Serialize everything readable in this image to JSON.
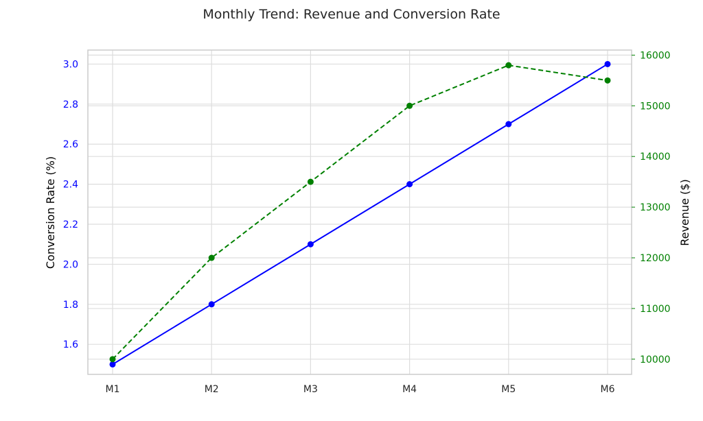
{
  "chart_data": {
    "type": "line",
    "title": "Monthly Trend: Revenue and Conversion Rate",
    "categories": [
      "M1",
      "M2",
      "M3",
      "M4",
      "M5",
      "M6"
    ],
    "xlabel": "",
    "y_left": {
      "label": "Conversion Rate (%)",
      "color": "#0000ff",
      "ylim": [
        1.45,
        3.07
      ],
      "ticks": [
        1.6,
        1.8,
        2.0,
        2.2,
        2.4,
        2.6,
        2.8,
        3.0
      ],
      "tick_labels": [
        "1.6",
        "1.8",
        "2.0",
        "2.2",
        "2.4",
        "2.6",
        "2.8",
        "3.0"
      ]
    },
    "y_right": {
      "label": "Revenue ($)",
      "color": "#008000",
      "ylim": [
        9700,
        16100
      ],
      "ticks": [
        10000,
        11000,
        12000,
        13000,
        14000,
        15000,
        16000
      ],
      "tick_labels": [
        "10000",
        "11000",
        "12000",
        "13000",
        "14000",
        "15000",
        "16000"
      ]
    },
    "series": [
      {
        "axis": "left",
        "color": "#0000ff",
        "line_style": "solid",
        "marker": "circle",
        "values": [
          1.5,
          1.8,
          2.1,
          2.4,
          2.7,
          3.0
        ]
      },
      {
        "axis": "right",
        "color": "#008000",
        "line_style": "dashed",
        "marker": "circle",
        "values": [
          10000,
          12000,
          13500,
          15000,
          15800,
          15500
        ]
      }
    ],
    "grid": true
  }
}
